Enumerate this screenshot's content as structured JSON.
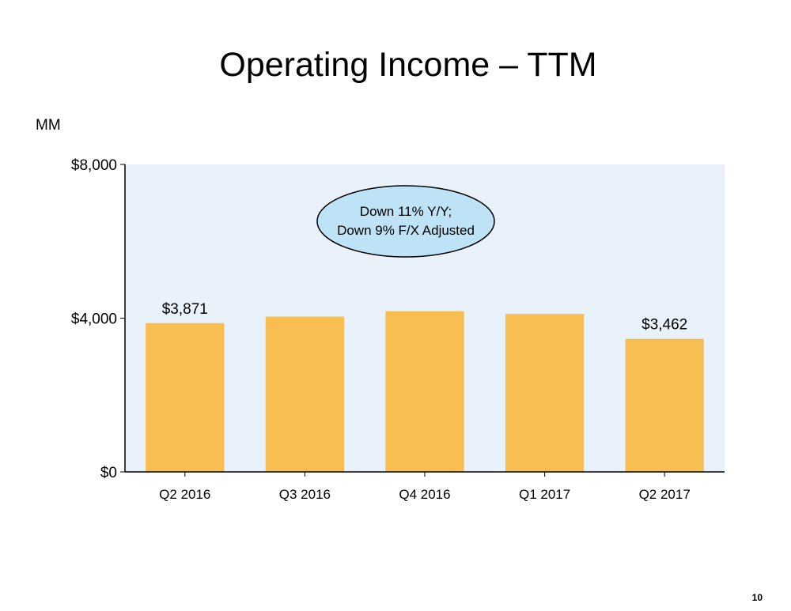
{
  "page": {
    "title": "Operating Income – TTM",
    "unit_label": "MM",
    "page_number": "10"
  },
  "annotation": {
    "line1": "Down 11% Y/Y;",
    "line2": "Down 9% F/X Adjusted"
  },
  "colors": {
    "bar": "#F9BE52",
    "plot_background": "#E9F1FB",
    "annotation_fill": "#BEE3F7"
  },
  "chart_data": {
    "type": "bar",
    "title": "Operating Income – TTM",
    "ylabel": "MM",
    "xlabel": "",
    "categories": [
      "Q2 2016",
      "Q3 2016",
      "Q4 2016",
      "Q1 2017",
      "Q2 2017"
    ],
    "values": [
      3871,
      4040,
      4180,
      4110,
      3462
    ],
    "data_labels": [
      "$3,871",
      "",
      "",
      "",
      "$3,462"
    ],
    "ylim": [
      0,
      8000
    ],
    "yticks": [
      0,
      4000,
      8000
    ],
    "ytick_labels": [
      "$0",
      "$4,000",
      "$8,000"
    ],
    "grid": false,
    "legend": "none"
  }
}
